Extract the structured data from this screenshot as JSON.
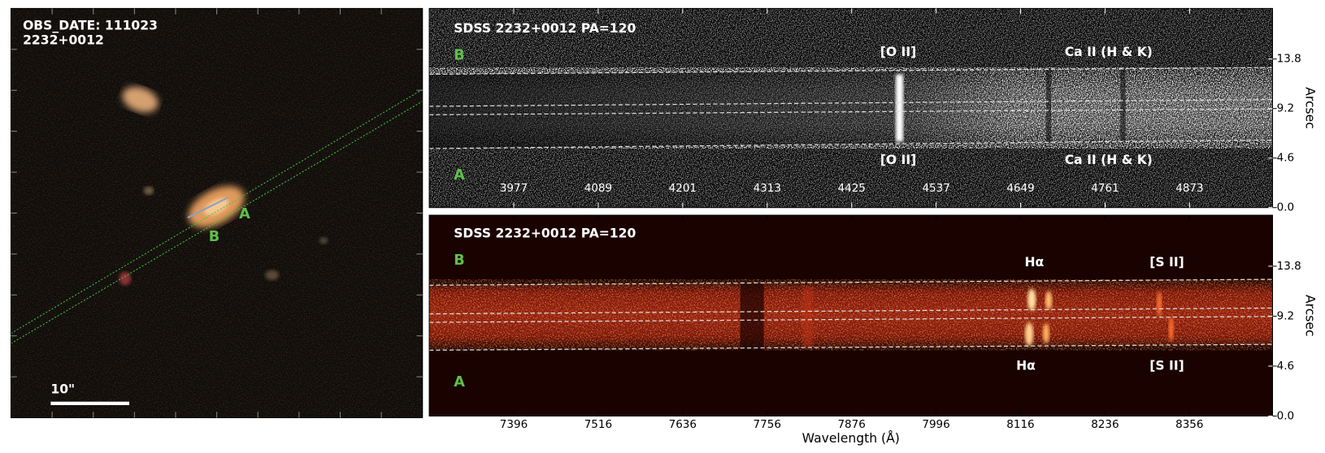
{
  "chart_data": [
    {
      "type": "image",
      "annotations": [
        "OBS_DATE: 111023",
        "2232+0012"
      ],
      "labels": [
        "A",
        "B"
      ],
      "scale_bar": "10\""
    },
    {
      "type": "spectrum",
      "title": "SDSS 2232+0012 PA=120",
      "xlim": [
        3865,
        4983
      ],
      "xticks": [
        3977,
        4089,
        4201,
        4313,
        4425,
        4537,
        4649,
        4761,
        4873
      ],
      "ylim": [
        0,
        18.5
      ],
      "yticks": [
        {
          "value": 0,
          "label": "0.0"
        },
        4.6,
        9.2,
        13.8
      ],
      "ylabel": "Arcsec",
      "slit_labels": [
        "B",
        "A"
      ],
      "line_labels": [
        "[O II]",
        "Ca II (H & K)",
        "[O II]",
        "Ca II (H & K)"
      ]
    },
    {
      "type": "spectrum",
      "title": "SDSS 2232+0012 PA=120",
      "xlim": [
        7276,
        8474
      ],
      "xticks": [
        7396,
        7516,
        7636,
        7756,
        7876,
        7996,
        8116,
        8236,
        8356
      ],
      "ylim": [
        0,
        18.5
      ],
      "yticks": [
        {
          "value": 0,
          "label": "0.0"
        },
        4.6,
        9.2,
        13.8
      ],
      "ylabel": "Arcsec",
      "xlabel": "Wavelength (Å)",
      "slit_labels": [
        "B",
        "A"
      ],
      "line_labels": [
        "Hα",
        "[S II]",
        "Hα",
        "[S II]"
      ]
    }
  ]
}
